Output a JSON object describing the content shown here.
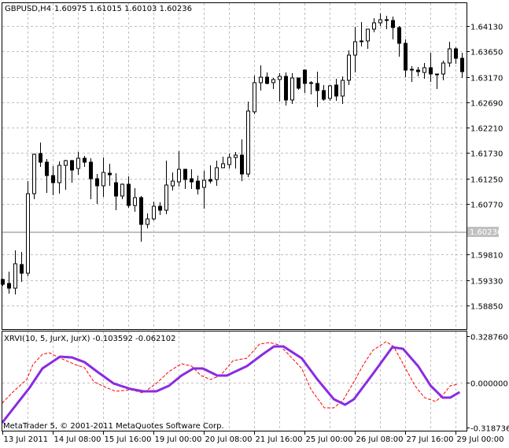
{
  "header": {
    "symbol_timeframe": "GBPUSD,H4",
    "ohlc": "1.60975 1.61015 1.60103 1.60236"
  },
  "indicator": {
    "label": "XRVI(10, 5, JurX, JurX) -0.103592 -0.062102"
  },
  "copyright": "MetaTrader 5, © 2001-2011 MetaQuotes Software Corp.",
  "colors": {
    "candle": "#000000",
    "grid": "#c0c0c0",
    "bid_line": "#c0c0c0",
    "xrvi_main": "#8a2be2",
    "xrvi_signal": "#ff0000"
  },
  "chart_data": [
    {
      "type": "candlestick",
      "title": "GBPUSD,H4",
      "y_ticks": [
        "1.64130",
        "1.63650",
        "1.63170",
        "1.62690",
        "1.62210",
        "1.61730",
        "1.61250",
        "1.60770",
        "1.59810",
        "1.59330",
        "1.58850"
      ],
      "current_price_label": "1.60236",
      "current_price": 1.60236,
      "grid": true,
      "x_labels": [
        {
          "text": "13 Jul 2011",
          "bar": 0
        },
        {
          "text": "14 Jul 08:00",
          "bar": 8
        },
        {
          "text": "15 Jul 16:00",
          "bar": 16
        },
        {
          "text": "19 Jul 00:00",
          "bar": 24
        },
        {
          "text": "20 Jul 08:00",
          "bar": 32
        },
        {
          "text": "21 Jul 16:00",
          "bar": 40
        },
        {
          "text": "25 Jul 00:00",
          "bar": 48
        },
        {
          "text": "26 Jul 08:00",
          "bar": 56
        },
        {
          "text": "27 Jul 16:00",
          "bar": 64
        },
        {
          "text": "29 Jul 00:00",
          "bar": 72
        }
      ],
      "ohlc_columns": [
        "open",
        "high",
        "low",
        "close"
      ],
      "candles": [
        [
          1.59333,
          1.59362,
          1.59228,
          1.59258
        ],
        [
          1.59273,
          1.59496,
          1.59079,
          1.59184
        ],
        [
          1.59184,
          1.59884,
          1.59064,
          1.59631
        ],
        [
          1.59616,
          1.59854,
          1.59303,
          1.59452
        ],
        [
          1.59452,
          1.61195,
          1.59407,
          1.60957
        ],
        [
          1.60957,
          1.61717,
          1.60852,
          1.61702
        ],
        [
          1.61717,
          1.61925,
          1.61463,
          1.61553
        ],
        [
          1.61553,
          1.61612,
          1.60972,
          1.61299
        ],
        [
          1.61299,
          1.61478,
          1.60927,
          1.61165
        ],
        [
          1.61165,
          1.61568,
          1.60957,
          1.61493
        ],
        [
          1.61493,
          1.61597,
          1.61031,
          1.61582
        ],
        [
          1.61582,
          1.61597,
          1.61165,
          1.61404
        ],
        [
          1.61433,
          1.61746,
          1.61314,
          1.61627
        ],
        [
          1.61627,
          1.61672,
          1.61463,
          1.61553
        ],
        [
          1.61553,
          1.61627,
          1.60852,
          1.6124
        ],
        [
          1.6124,
          1.61329,
          1.60763,
          1.61106
        ],
        [
          1.61106,
          1.61642,
          1.60897,
          1.61359
        ],
        [
          1.61344,
          1.61523,
          1.61106,
          1.61314
        ],
        [
          1.61165,
          1.61344,
          1.60644,
          1.60912
        ],
        [
          1.60912,
          1.6115,
          1.60852,
          1.61135
        ],
        [
          1.61135,
          1.61284,
          1.60688,
          1.60733
        ],
        [
          1.60733,
          1.61061,
          1.60614,
          1.60882
        ],
        [
          1.60882,
          1.60912,
          1.60048,
          1.60376
        ],
        [
          1.60376,
          1.60584,
          1.60301,
          1.6048
        ],
        [
          1.6048,
          1.60808,
          1.6045,
          1.60718
        ],
        [
          1.60718,
          1.60793,
          1.60554,
          1.60644
        ],
        [
          1.60644,
          1.61582,
          1.60569,
          1.61121
        ],
        [
          1.61106,
          1.61359,
          1.61016,
          1.61195
        ],
        [
          1.6118,
          1.61761,
          1.61091,
          1.61419
        ],
        [
          1.61419,
          1.61419,
          1.61046,
          1.61225
        ],
        [
          1.6124,
          1.61419,
          1.61046,
          1.6118
        ],
        [
          1.61195,
          1.61299,
          1.60942,
          1.61046
        ],
        [
          1.61076,
          1.61389,
          1.60674,
          1.6121
        ],
        [
          1.61225,
          1.61493,
          1.6115,
          1.61195
        ],
        [
          1.61225,
          1.61582,
          1.61106,
          1.61448
        ],
        [
          1.61448,
          1.61657,
          1.61448,
          1.61523
        ],
        [
          1.61508,
          1.61717,
          1.61433,
          1.61642
        ],
        [
          1.61642,
          1.61746,
          1.61433,
          1.61687
        ],
        [
          1.61687,
          1.61985,
          1.61195,
          1.61329
        ],
        [
          1.61329,
          1.627,
          1.6127,
          1.62521
        ],
        [
          1.62506,
          1.63192,
          1.62462,
          1.63058
        ],
        [
          1.63058,
          1.63385,
          1.62909,
          1.63162
        ],
        [
          1.63162,
          1.63251,
          1.63028,
          1.63043
        ],
        [
          1.63058,
          1.63147,
          1.62938,
          1.63117
        ],
        [
          1.63117,
          1.63236,
          1.627,
          1.63177
        ],
        [
          1.63177,
          1.63251,
          1.62625,
          1.6273
        ],
        [
          1.6273,
          1.63236,
          1.62655,
          1.63147
        ],
        [
          1.63147,
          1.63147,
          1.62923,
          1.62953
        ],
        [
          1.63296,
          1.63311,
          1.62864,
          1.63043
        ],
        [
          1.63058,
          1.63087,
          1.62834,
          1.63043
        ],
        [
          1.63043,
          1.63266,
          1.62596,
          1.62909
        ],
        [
          1.62909,
          1.63013,
          1.62715,
          1.62745
        ],
        [
          1.6276,
          1.63013,
          1.62715,
          1.62998
        ],
        [
          1.63013,
          1.63132,
          1.62715,
          1.62804
        ],
        [
          1.62804,
          1.63177,
          1.62655,
          1.63102
        ],
        [
          1.63102,
          1.63668,
          1.63013,
          1.63579
        ],
        [
          1.63579,
          1.64115,
          1.63251,
          1.63832
        ],
        [
          1.63847,
          1.64205,
          1.63743,
          1.63832
        ],
        [
          1.63847,
          1.64071,
          1.63698,
          1.64071
        ],
        [
          1.64071,
          1.64279,
          1.64011,
          1.6419
        ],
        [
          1.6419,
          1.64369,
          1.6413,
          1.6425
        ],
        [
          1.6425,
          1.64324,
          1.64071,
          1.64235
        ],
        [
          1.64235,
          1.64309,
          1.63877,
          1.64101
        ],
        [
          1.64101,
          1.6413,
          1.63549,
          1.63803
        ],
        [
          1.63803,
          1.63877,
          1.63162,
          1.63296
        ],
        [
          1.63311,
          1.6337,
          1.63072,
          1.63296
        ],
        [
          1.63296,
          1.63356,
          1.63177,
          1.63266
        ],
        [
          1.63251,
          1.6343,
          1.63132,
          1.63341
        ],
        [
          1.63341,
          1.63624,
          1.63072,
          1.63221
        ],
        [
          1.63221,
          1.63221,
          1.62938,
          1.63207
        ],
        [
          1.63221,
          1.63475,
          1.63102,
          1.6343
        ],
        [
          1.6343,
          1.63832,
          1.63356,
          1.63698
        ],
        [
          1.63698,
          1.63728,
          1.63415,
          1.63519
        ],
        [
          1.63519,
          1.63624,
          1.63147,
          1.63266
        ]
      ]
    },
    {
      "type": "line",
      "title": "XRVI(10, 5, JurX, JurX)",
      "y_ticks": [
        "0.328760",
        "0.000000",
        "-0.318736"
      ],
      "ylim": [
        -0.318736,
        0.32876
      ],
      "series": [
        {
          "color": "#8a2be2",
          "style": "solid",
          "bar": [
            -0.1,
            4.3,
            6.3,
            9.1,
            11,
            13,
            15,
            17.6,
            20.3,
            22.3,
            24.4,
            26.4,
            28.4,
            30.3,
            31.8,
            34.1,
            35.6,
            38.8,
            41.3,
            43.1,
            44.6,
            47.5,
            50,
            52.6,
            54.4,
            55.8,
            58.8,
            61.9,
            63.6,
            66,
            68,
            69.9,
            71.1,
            72.6
          ],
          "values": [
            -0.2842,
            -0.0334,
            0.1003,
            0.1839,
            0.1783,
            0.1449,
            0.078,
            -0.0056,
            -0.0446,
            -0.0613,
            -0.0613,
            -0.0223,
            0.0501,
            0.1003,
            0.1003,
            0.0501,
            0.0501,
            0.117,
            0.2006,
            0.2563,
            0.2563,
            0.1727,
            0.0223,
            -0.117,
            -0.156,
            -0.117,
            0.0613,
            0.2507,
            0.2396,
            0.117,
            -0.0223,
            -0.1059,
            -0.1059,
            -0.0669
          ]
        },
        {
          "color": "#ff0000",
          "style": "dashed",
          "bar": [
            -0.1,
            1.6,
            3.8,
            4.8,
            6.3,
            7.4,
            8.9,
            11.5,
            13,
            14.5,
            16.1,
            17.9,
            20.3,
            22.3,
            24.4,
            26.4,
            28.4,
            30,
            31.5,
            33,
            34.6,
            36.6,
            38.8,
            40.8,
            42.4,
            43.9,
            45.4,
            47.5,
            49,
            51.1,
            52.6,
            54.1,
            55.8,
            57.3,
            58.8,
            60.9,
            62.1,
            63.6,
            65.5,
            67,
            68.8,
            70.1,
            71.1,
            72.4
          ],
          "values": [
            -0.1449,
            -0.0669,
            0.0223,
            0.1282,
            0.2006,
            0.2117,
            0.1783,
            0.1282,
            0.1059,
            0.0056,
            -0.0279,
            -0.0613,
            -0.0501,
            -0.0724,
            -0.0056,
            0.078,
            0.1337,
            0.117,
            0.0501,
            0.0223,
            0.0501,
            0.156,
            0.1727,
            0.273,
            0.2842,
            0.2675,
            0.2006,
            0.1003,
            -0.0501,
            -0.1783,
            -0.1783,
            -0.1226,
            0.0056,
            0.1282,
            0.2285,
            0.2897,
            0.2563,
            0.1337,
            -0.0223,
            -0.1059,
            -0.1337,
            -0.078,
            -0.0223,
            -0.0111
          ]
        }
      ]
    }
  ]
}
